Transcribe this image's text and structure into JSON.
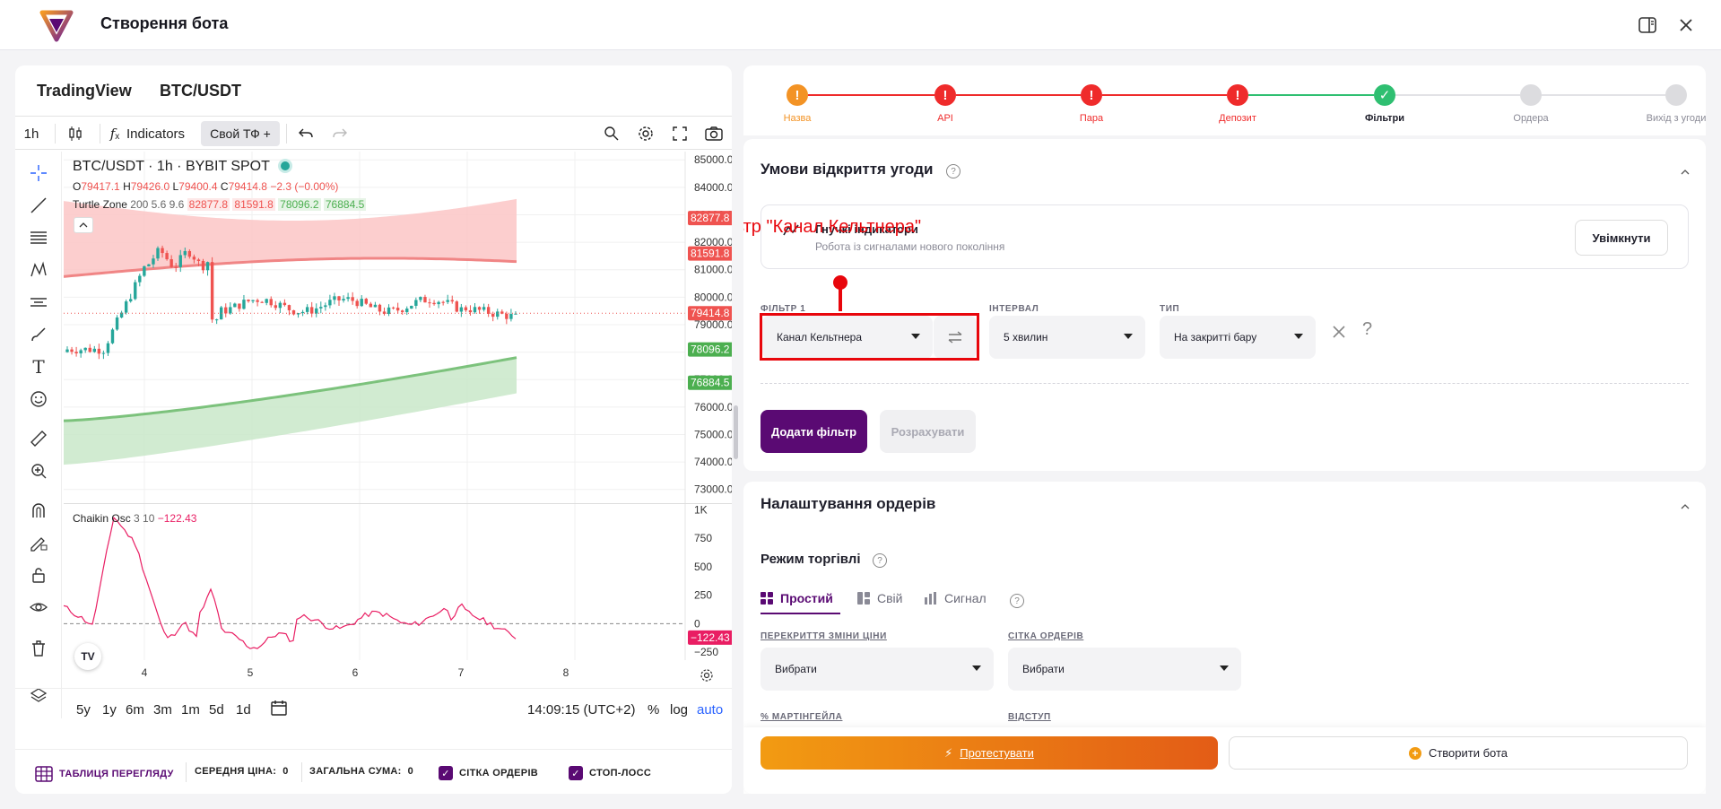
{
  "header": {
    "title": "Створення бота"
  },
  "tradingview": {
    "brand": "TradingView",
    "symbol": "BTC/USDT",
    "toolbar": {
      "interval": "1h",
      "indicators": "Indicators",
      "custom_tf": "Свой ТФ +"
    },
    "legend": {
      "title": "BTC/USDT · 1h · BYBIT SPOT",
      "o_label": "O",
      "o": "79417.1",
      "h_label": "H",
      "h": "79426.0",
      "l_label": "L",
      "l": "79400.4",
      "c_label": "C",
      "c": "79414.8",
      "change": "−2.3 (−0.00%)",
      "turtle_name": "Turtle Zone",
      "turtle_params": "200 5.6 9.6",
      "turtle_v1": "82877.8",
      "turtle_v2": "81591.8",
      "turtle_v3": "78096.2",
      "turtle_v4": "76884.5"
    },
    "price_axis": [
      "85000.0",
      "84000.0",
      "83000.0",
      "82000.0",
      "81000.0",
      "80000.0",
      "79000.0",
      "78000.0",
      "77000.0",
      "76000.0",
      "75000.0",
      "74000.0",
      "73000.0"
    ],
    "price_badges": [
      {
        "label": "82877.8",
        "color": "#ef5350"
      },
      {
        "label": "81591.8",
        "color": "#ef5350"
      },
      {
        "label": "79414.8",
        "color": "#ef5350"
      },
      {
        "label": "78096.2",
        "color": "#4caf50"
      },
      {
        "label": "76884.5",
        "color": "#4caf50"
      }
    ],
    "osc": {
      "name": "Chaikin Osc",
      "params": "3 10",
      "value": "−122.43",
      "axis": [
        "1K",
        "750",
        "500",
        "250",
        "0",
        "−250"
      ],
      "badge": "−122.43"
    },
    "time_axis": [
      "4",
      "5",
      "6",
      "7",
      "8"
    ],
    "ranges": [
      "5y",
      "1y",
      "6m",
      "3m",
      "1m",
      "5d",
      "1d"
    ],
    "clock": "14:09:15 (UTC+2)",
    "scale_pct": "%",
    "scale_log": "log",
    "scale_auto": "auto",
    "footer": {
      "table": "ТАБЛИЦЯ ПЕРЕГЛЯДУ",
      "avg_label": "СЕРЕДНЯ ЦІНА:",
      "avg_value": "0",
      "sum_label": "ЗАГАЛЬНА СУМА:",
      "sum_value": "0",
      "grid": "СІТКА ОРДЕРІВ",
      "stop": "СТОП-ЛОСС"
    }
  },
  "annotation": {
    "text": "Обраний фільтр \"Канал Кельтнера\"",
    "color": "#e8060c"
  },
  "stepper": [
    {
      "label": "Назва",
      "state": "warning",
      "color": "#f39325"
    },
    {
      "label": "API",
      "state": "error",
      "color": "#ef2b2b"
    },
    {
      "label": "Пара",
      "state": "error",
      "color": "#ef2b2b"
    },
    {
      "label": "Депозит",
      "state": "error",
      "color": "#ef2b2b"
    },
    {
      "label": "Фільтри",
      "state": "done",
      "color": "#2fbf71"
    },
    {
      "label": "Ордера",
      "state": "todo",
      "color": "#dcdcdf"
    },
    {
      "label": "Вихід з угоди",
      "state": "todo",
      "color": "#dcdcdf"
    }
  ],
  "conditions": {
    "title": "Умови відкриття угоди",
    "flex": {
      "title": "Гнучкі індикатори",
      "subtitle": "Робота із сигналами нового покоління",
      "button": "Увімкнути"
    },
    "filter_label": "ФІЛЬТР 1",
    "filter_value": "Канал Кельтнера",
    "interval_label": "ІНТЕРВАЛ",
    "interval_value": "5 хвилин",
    "type_label": "ТИП",
    "type_value": "На закритті бару",
    "add_button": "Додати фільтр",
    "calc_button": "Розрахувати"
  },
  "orders": {
    "title": "Налаштування ордерів",
    "mode_title": "Режим торгівлі",
    "tabs": [
      "Простий",
      "Свій",
      "Сигнал"
    ],
    "price_overlap_label": "ПЕРЕКРИТТЯ ЗМІНИ ЦІНИ",
    "price_overlap_value": "Вибрати",
    "grid_label": "СІТКА ОРДЕРІВ",
    "grid_value": "Вибрати",
    "martingale_label": "% МАРТІНГЕЙЛА",
    "indent_label": "ВІДСТУП"
  },
  "actions": {
    "test": "Протестувати",
    "create": "Створити бота"
  }
}
